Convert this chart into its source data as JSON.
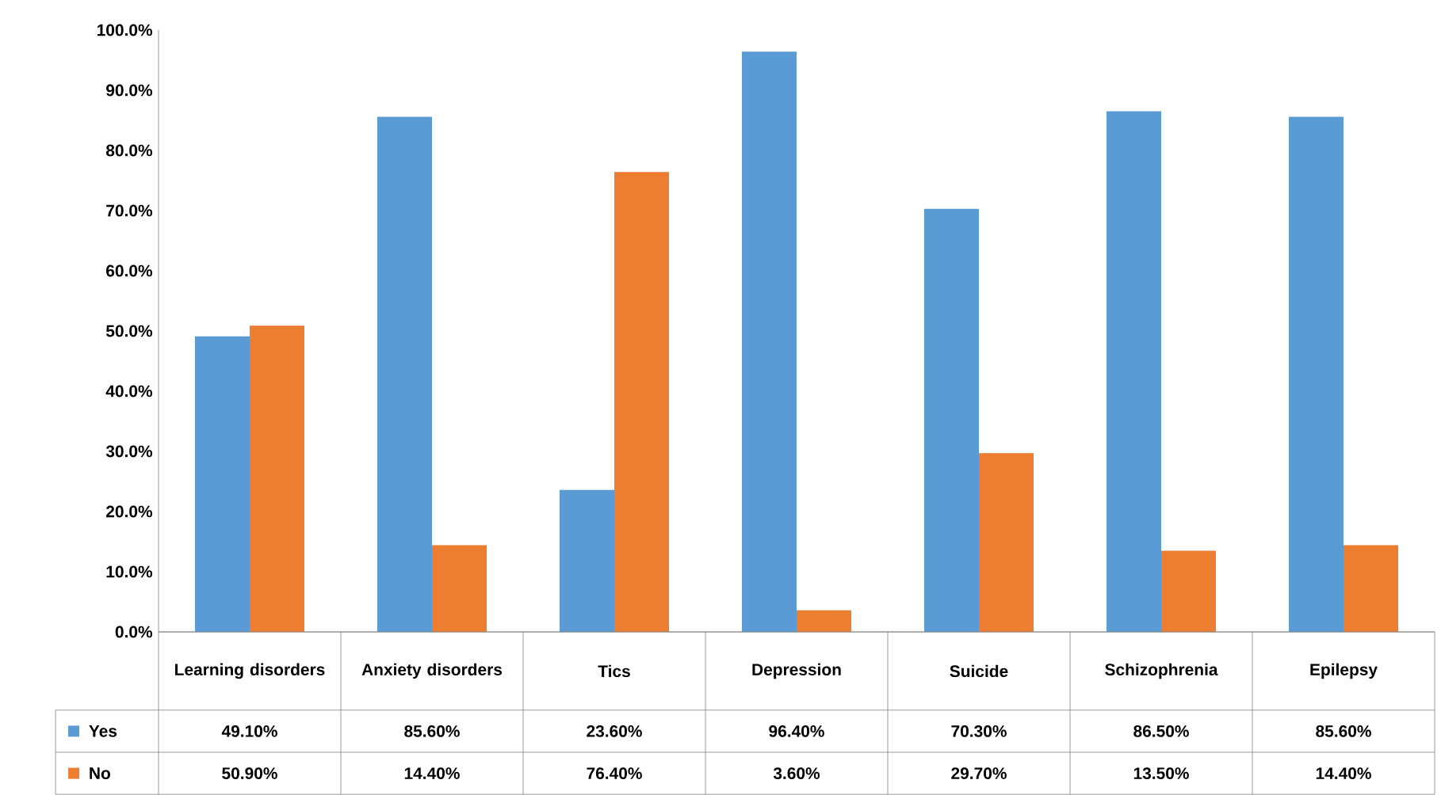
{
  "chart_data": {
    "type": "bar",
    "categories": [
      "Learning disorders",
      "Anxiety disorders",
      "Tics",
      "Depression",
      "Suicide",
      "Schizophrenia",
      "Epilepsy"
    ],
    "series": [
      {
        "name": "Yes",
        "color": "#5b9bd5",
        "values": [
          49.1,
          85.6,
          23.6,
          96.4,
          70.3,
          86.5,
          85.6
        ],
        "value_labels": [
          "49.10%",
          "85.60%",
          "23.60%",
          "96.40%",
          "70.30%",
          "86.50%",
          "85.60%"
        ]
      },
      {
        "name": "No",
        "color": "#ed7d31",
        "values": [
          50.9,
          14.4,
          76.4,
          3.6,
          29.7,
          13.5,
          14.4
        ],
        "value_labels": [
          "50.90%",
          "14.40%",
          "76.40%",
          "3.60%",
          "29.70%",
          "13.50%",
          "14.40%"
        ]
      }
    ],
    "ylim": [
      0,
      100
    ],
    "yticks": [
      {
        "value": 0,
        "label": "0.0%"
      },
      {
        "value": 10,
        "label": "10.0%"
      },
      {
        "value": 20,
        "label": "20.0%"
      },
      {
        "value": 30,
        "label": "30.0%"
      },
      {
        "value": 40,
        "label": "40.0%"
      },
      {
        "value": 50,
        "label": "50.0%"
      },
      {
        "value": 60,
        "label": "60.0%"
      },
      {
        "value": 70,
        "label": "70.0%"
      },
      {
        "value": 80,
        "label": "80.0%"
      },
      {
        "value": 90,
        "label": "90.0%"
      },
      {
        "value": 100,
        "label": "100.0%"
      }
    ],
    "grid": false,
    "legend": "bottom"
  }
}
